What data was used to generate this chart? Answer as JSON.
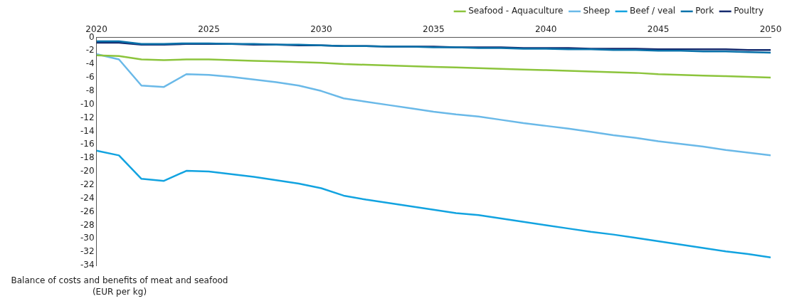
{
  "chart_data": {
    "type": "line",
    "ylabel": "Balance of costs and benefits of meat and seafood\n(EUR per kg)",
    "x": [
      2020,
      2021,
      2022,
      2023,
      2024,
      2025,
      2026,
      2027,
      2028,
      2029,
      2030,
      2031,
      2032,
      2033,
      2034,
      2035,
      2036,
      2037,
      2038,
      2039,
      2040,
      2041,
      2042,
      2043,
      2044,
      2045,
      2046,
      2047,
      2048,
      2049,
      2050
    ],
    "series": [
      {
        "name": "Seafood - Aquaculture",
        "color": "#8cc43c",
        "values": [
          -2.7,
          -2.8,
          -3.3,
          -3.4,
          -3.3,
          -3.3,
          -3.4,
          -3.5,
          -3.6,
          -3.7,
          -3.8,
          -4.0,
          -4.1,
          -4.2,
          -4.3,
          -4.4,
          -4.5,
          -4.6,
          -4.7,
          -4.8,
          -4.9,
          -5.0,
          -5.1,
          -5.2,
          -5.3,
          -5.5,
          -5.6,
          -5.7,
          -5.8,
          -5.9,
          -6.0
        ]
      },
      {
        "name": "Sheep",
        "color": "#6ab9e8",
        "values": [
          -2.5,
          -3.3,
          -7.2,
          -7.4,
          -5.5,
          -5.6,
          -5.9,
          -6.3,
          -6.7,
          -7.2,
          -8.0,
          -9.1,
          -9.6,
          -10.1,
          -10.6,
          -11.1,
          -11.5,
          -11.8,
          -12.3,
          -12.8,
          -13.2,
          -13.6,
          -14.1,
          -14.6,
          -15.0,
          -15.5,
          -15.9,
          -16.3,
          -16.8,
          -17.2,
          -17.6
        ]
      },
      {
        "name": "Beef / veal",
        "color": "#12a3e0",
        "values": [
          -16.9,
          -17.6,
          -21.1,
          -21.4,
          -19.9,
          -20.0,
          -20.4,
          -20.8,
          -21.3,
          -21.8,
          -22.5,
          -23.6,
          -24.2,
          -24.7,
          -25.2,
          -25.7,
          -26.2,
          -26.5,
          -27.0,
          -27.5,
          -28.0,
          -28.5,
          -29.0,
          -29.4,
          -29.9,
          -30.4,
          -30.9,
          -31.4,
          -31.9,
          -32.3,
          -32.8
        ]
      },
      {
        "name": "Pork",
        "color": "#0a72aa",
        "values": [
          -0.6,
          -0.6,
          -1.0,
          -1.0,
          -0.9,
          -0.9,
          -1.0,
          -1.0,
          -1.1,
          -1.1,
          -1.2,
          -1.3,
          -1.3,
          -1.4,
          -1.4,
          -1.5,
          -1.5,
          -1.6,
          -1.6,
          -1.7,
          -1.7,
          -1.8,
          -1.8,
          -1.9,
          -1.9,
          -2.0,
          -2.0,
          -2.1,
          -2.1,
          -2.2,
          -2.3
        ]
      },
      {
        "name": "Poultry",
        "color": "#152a6e",
        "values": [
          -0.8,
          -0.8,
          -1.1,
          -1.1,
          -1.0,
          -1.0,
          -1.0,
          -1.1,
          -1.1,
          -1.2,
          -1.2,
          -1.3,
          -1.3,
          -1.4,
          -1.4,
          -1.4,
          -1.5,
          -1.5,
          -1.5,
          -1.6,
          -1.6,
          -1.6,
          -1.7,
          -1.7,
          -1.7,
          -1.8,
          -1.8,
          -1.8,
          -1.8,
          -1.9,
          -1.9
        ]
      }
    ],
    "xlim": [
      2020,
      2050
    ],
    "xticks": [
      2020,
      2025,
      2030,
      2035,
      2040,
      2045,
      2050
    ],
    "ylim": [
      -34,
      0
    ],
    "yticks": [
      0,
      -2,
      -4,
      -6,
      -8,
      -10,
      -12,
      -14,
      -16,
      -18,
      -20,
      -22,
      -24,
      -26,
      -28,
      -30,
      -32,
      -34
    ],
    "grid": false,
    "legend": "top right",
    "marker": "none",
    "line_style": "solid"
  }
}
